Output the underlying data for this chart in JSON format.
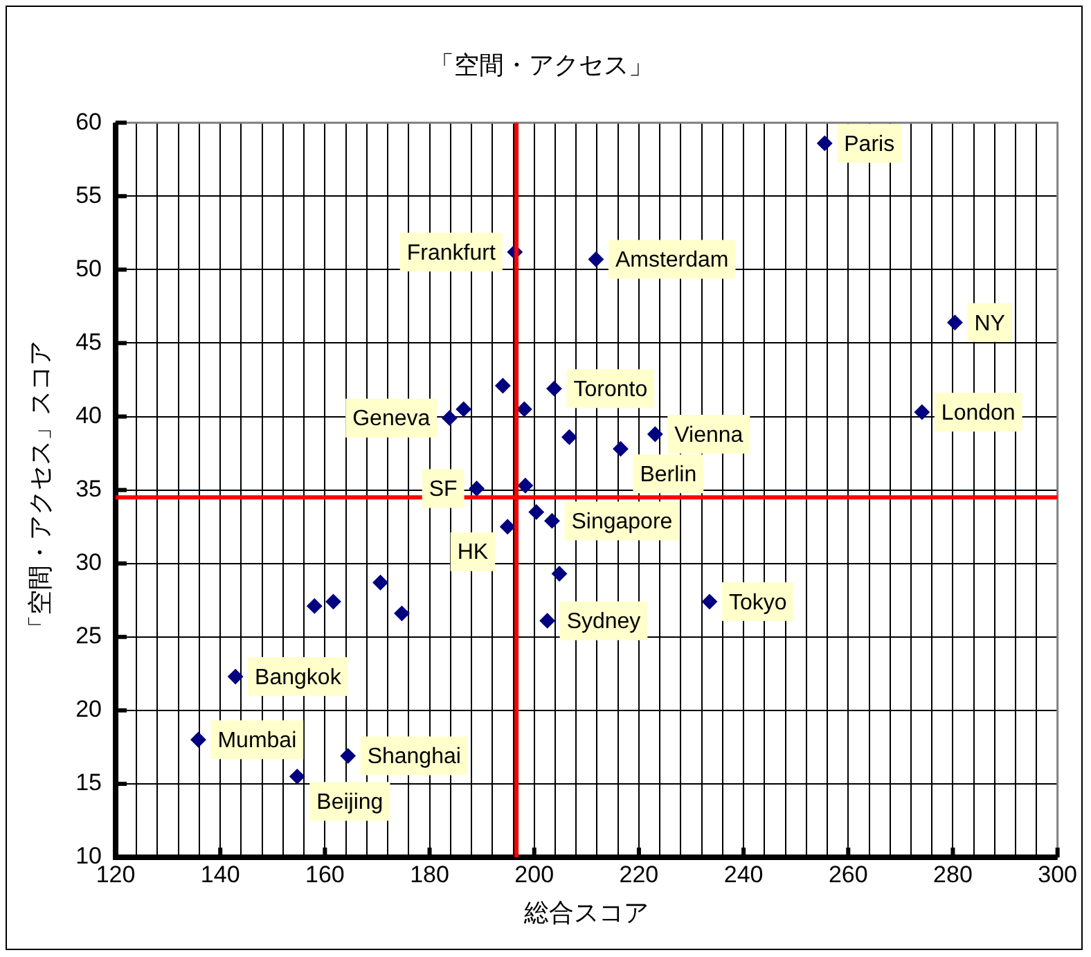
{
  "chart_data": {
    "type": "scatter",
    "title": "「空間・アクセス」",
    "xlabel": "総合スコア",
    "ylabel": "「空間・アクセス」スコア",
    "xlim": [
      120,
      300
    ],
    "xticks": [
      120,
      {
        "value": 124,
        "label": null
      },
      {
        "value": 128,
        "label": null
      },
      {
        "value": 132,
        "label": null
      },
      {
        "value": 136,
        "label": null
      },
      140,
      {
        "value": 144,
        "label": null
      },
      {
        "value": 148,
        "label": null
      },
      {
        "value": 152,
        "label": null
      },
      {
        "value": 156,
        "label": null
      },
      160,
      {
        "value": 164,
        "label": null
      },
      {
        "value": 168,
        "label": null
      },
      {
        "value": 172,
        "label": null
      },
      {
        "value": 176,
        "label": null
      },
      180,
      {
        "value": 184,
        "label": null
      },
      {
        "value": 188,
        "label": null
      },
      {
        "value": 192,
        "label": null
      },
      {
        "value": 196,
        "label": null
      },
      200,
      {
        "value": 204,
        "label": null
      },
      {
        "value": 208,
        "label": null
      },
      {
        "value": 212,
        "label": null
      },
      {
        "value": 216,
        "label": null
      },
      220,
      {
        "value": 224,
        "label": null
      },
      {
        "value": 228,
        "label": null
      },
      {
        "value": 232,
        "label": null
      },
      {
        "value": 236,
        "label": null
      },
      240,
      {
        "value": 244,
        "label": null
      },
      {
        "value": 248,
        "label": null
      },
      {
        "value": 252,
        "label": null
      },
      {
        "value": 256,
        "label": null
      },
      260,
      {
        "value": 264,
        "label": null
      },
      {
        "value": 268,
        "label": null
      },
      {
        "value": 272,
        "label": null
      },
      {
        "value": 276,
        "label": null
      },
      280,
      {
        "value": 284,
        "label": null
      },
      {
        "value": 288,
        "label": null
      },
      {
        "value": 292,
        "label": null
      },
      {
        "value": 296,
        "label": null
      },
      300
    ],
    "ylim": [
      10,
      60
    ],
    "yticks": [
      10,
      15,
      20,
      25,
      30,
      35,
      40,
      45,
      50,
      55,
      60
    ],
    "grid": true,
    "legend": false,
    "marker": "diamond",
    "series": [
      {
        "color": "#000080",
        "x": [
          196.3,
          211.8,
          255.5,
          280.4,
          274.1,
          203.8,
          223.1,
          216.5,
          206.7,
          183.8,
          186.5,
          194.0,
          198.1,
          189.0,
          198.3,
          200.4,
          203.4,
          194.9,
          204.8,
          202.5,
          233.5,
          158.0,
          161.6,
          170.6,
          174.7,
          142.9,
          135.8,
          154.7,
          164.4
        ],
        "values": [
          51.2,
          50.7,
          58.6,
          46.4,
          40.3,
          41.9,
          38.8,
          37.8,
          38.6,
          39.9,
          40.5,
          42.1,
          40.5,
          35.1,
          35.3,
          33.5,
          32.9,
          32.5,
          29.3,
          26.1,
          27.4,
          27.1,
          27.4,
          28.7,
          26.6,
          22.3,
          18.0,
          15.5,
          16.9
        ]
      }
    ],
    "ref_lines": [
      {
        "axis": "x",
        "value": 196.6,
        "color": "#ff0000"
      },
      {
        "axis": "y",
        "value": 34.5,
        "color": "#ff0000"
      }
    ],
    "annotations": [
      {
        "text": "Frankfurt",
        "x": 196.3,
        "y": 51.2
      },
      {
        "text": "Amsterdam",
        "x": 211.8,
        "y": 50.7
      },
      {
        "text": "Paris",
        "x": 255.5,
        "y": 58.6
      },
      {
        "text": "NY",
        "x": 280.4,
        "y": 46.4
      },
      {
        "text": "London",
        "x": 274.1,
        "y": 40.3
      },
      {
        "text": "Toronto",
        "x": 203.8,
        "y": 41.9
      },
      {
        "text": "Vienna",
        "x": 223.1,
        "y": 38.8
      },
      {
        "text": "Berlin",
        "x": 216.5,
        "y": 37.8
      },
      {
        "text": "Geneva",
        "x": 183.8,
        "y": 39.9
      },
      {
        "text": "SF",
        "x": 189.0,
        "y": 35.1
      },
      {
        "text": "Singapore",
        "x": 203.4,
        "y": 32.9
      },
      {
        "text": "HK",
        "x": 194.9,
        "y": 32.5
      },
      {
        "text": "Sydney",
        "x": 202.5,
        "y": 26.1
      },
      {
        "text": "Tokyo",
        "x": 233.5,
        "y": 27.4
      },
      {
        "text": "Bangkok",
        "x": 142.9,
        "y": 22.3
      },
      {
        "text": "Mumbai",
        "x": 135.8,
        "y": 18.0
      },
      {
        "text": "Beijing",
        "x": 154.7,
        "y": 15.5
      },
      {
        "text": "Shanghai",
        "x": 164.4,
        "y": 16.9
      }
    ]
  }
}
